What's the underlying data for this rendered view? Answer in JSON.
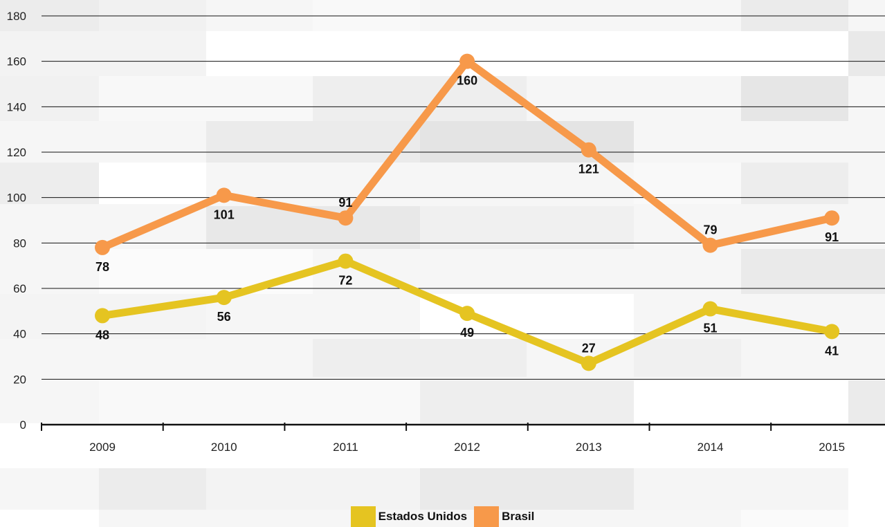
{
  "colors": {
    "estados_unidos": "#e5c421",
    "brasil": "#f7994a",
    "grid": "#111111"
  },
  "chart_data": {
    "type": "line",
    "categories": [
      "2009",
      "2010",
      "2011",
      "2012",
      "2013",
      "2014",
      "2015"
    ],
    "ylim": [
      0,
      180
    ],
    "yticks": [
      0,
      20,
      40,
      60,
      80,
      100,
      120,
      140,
      160,
      180
    ],
    "grid": true,
    "legend_position": "bottom-center",
    "series": [
      {
        "name": "Estados Unidos",
        "values": [
          48,
          56,
          72,
          49,
          27,
          51,
          41
        ]
      },
      {
        "name": "Brasil",
        "values": [
          78,
          101,
          91,
          160,
          121,
          79,
          91
        ]
      }
    ]
  },
  "legend": {
    "items": [
      {
        "label": "Estados Unidos"
      },
      {
        "label": "Brasil"
      }
    ]
  }
}
